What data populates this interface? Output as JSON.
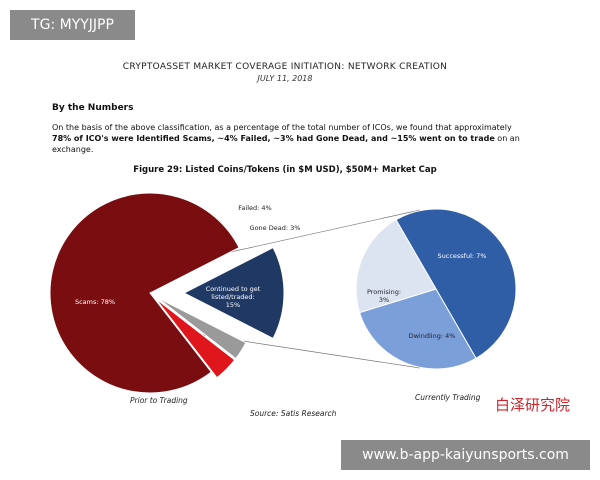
{
  "overlay_top": "TG: MYYJJPP",
  "overlay_bottom": "www.b-app-kaiyunsports.com",
  "document": {
    "title": "CRYPTOASSET MARKET COVERAGE INITIATION: NETWORK CREATION",
    "date": "JULY 11, 2018",
    "heading": "By the Numbers",
    "paragraph": [
      "On the basis of the above classification, as a percentage of the total number of ICOs, we found that approximately ",
      "78% of ICO's were Identified Scams, ~4% Failed, ~3% had Gone Dead, and ~15% went on to trade",
      " on an exchange."
    ],
    "source": "Source: Satis Research",
    "watermark": "白泽研究院"
  },
  "chart_data": [
    {
      "type": "pie",
      "title": "Figure 29: Listed Coins/Tokens (in $M USD), $50M+ Market Cap",
      "caption": "Prior to Trading",
      "values": [
        15,
        3,
        4,
        78
      ],
      "value_labels": [
        "Continued to get listed/traded: 15%",
        "Gone Dead: 3%",
        "Failed: 4%",
        "Scams: 78%"
      ],
      "colors": [
        "#1f3864",
        "#9a9a9a",
        "#e0161d",
        "#7a0d10"
      ]
    },
    {
      "type": "pie",
      "caption": "Currently Trading",
      "values": [
        7,
        4,
        3
      ],
      "value_labels": [
        "Successful: 7%",
        "Dwindling: 4%",
        "Promising: 3%"
      ],
      "colors": [
        "#2f5da6",
        "#7b9fd8",
        "#dde4f1"
      ]
    }
  ]
}
